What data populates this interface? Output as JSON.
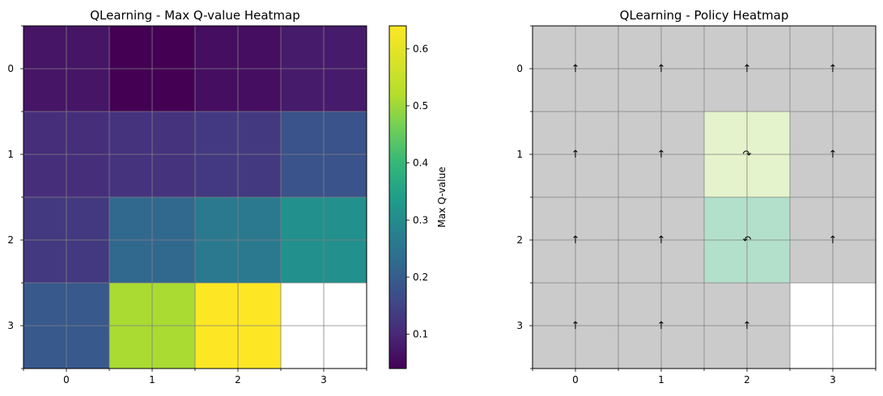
{
  "chart_data": [
    {
      "type": "heatmap",
      "title": "QLearning - Max Q-value Heatmap",
      "rows": [
        "0",
        "1",
        "2",
        "3"
      ],
      "cols": [
        "0",
        "1",
        "2",
        "3"
      ],
      "values": [
        [
          0.07,
          0.04,
          0.06,
          0.08
        ],
        [
          0.11,
          0.12,
          0.13,
          0.18
        ],
        [
          0.13,
          0.22,
          0.26,
          0.31
        ],
        [
          0.19,
          0.51,
          0.64,
          null
        ]
      ],
      "colormap": "viridis",
      "colorbar": {
        "label": "Max Q-value",
        "ticks": [
          "0.1",
          "0.2",
          "0.3",
          "0.4",
          "0.5",
          "0.6"
        ],
        "range": [
          0.04,
          0.64
        ]
      },
      "grid": true
    },
    {
      "type": "heatmap",
      "title": "QLearning - Policy Heatmap",
      "rows": [
        "0",
        "1",
        "2",
        "3"
      ],
      "cols": [
        "0",
        "1",
        "2",
        "3"
      ],
      "cell_colors": [
        [
          "#cbcbcb",
          "#cbcbcb",
          "#cbcbcb",
          "#cbcbcb"
        ],
        [
          "#cbcbcb",
          "#cbcbcb",
          "#e4f3cb",
          "#cbcbcb"
        ],
        [
          "#cbcbcb",
          "#cbcbcb",
          "#b3e0cb",
          "#cbcbcb"
        ],
        [
          "#cbcbcb",
          "#cbcbcb",
          "#cbcbcb",
          "#ffffff"
        ]
      ],
      "arrows": [
        [
          "↑",
          "↑",
          "↑",
          "↑"
        ],
        [
          "↑",
          "↑",
          "↷",
          "↑"
        ],
        [
          "↑",
          "↑",
          "↶",
          "↑"
        ],
        [
          "↑",
          "↑",
          "↑",
          ""
        ]
      ],
      "grid": true
    }
  ]
}
